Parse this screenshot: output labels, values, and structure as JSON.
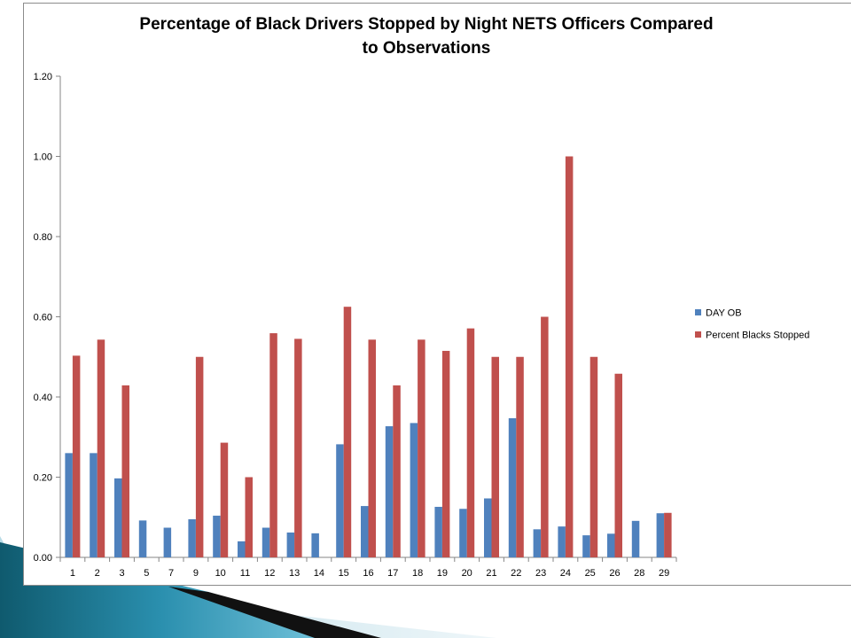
{
  "chart_data": {
    "type": "bar",
    "title": "Percentage of Black Drivers Stopped by Night NETS Officers Compared to Observations",
    "xlabel": "",
    "ylabel": "",
    "ylim": [
      0,
      1.2
    ],
    "yticks": [
      "0.00",
      "0.20",
      "0.40",
      "0.60",
      "0.80",
      "1.00",
      "1.20"
    ],
    "grid": false,
    "legend_position": "right",
    "categories": [
      "1",
      "2",
      "3",
      "5",
      "7",
      "9",
      "10",
      "11",
      "12",
      "13",
      "14",
      "15",
      "16",
      "17",
      "18",
      "19",
      "20",
      "21",
      "22",
      "23",
      "24",
      "25",
      "26",
      "28",
      "29"
    ],
    "series": [
      {
        "name": "DAY OB",
        "color": "#4F81BD",
        "values": [
          0.26,
          0.26,
          0.197,
          0.092,
          0.074,
          0.095,
          0.104,
          0.04,
          0.074,
          0.062,
          0.06,
          0.282,
          0.128,
          0.327,
          0.335,
          0.126,
          0.121,
          0.147,
          0.347,
          0.07,
          0.077,
          0.055,
          0.059,
          0.091,
          0.11
        ]
      },
      {
        "name": "Percent Blacks Stopped",
        "color": "#C0504D",
        "values": [
          0.503,
          0.543,
          0.429,
          0,
          0,
          0.5,
          0.286,
          0.2,
          0.559,
          0.545,
          0,
          0.625,
          0.543,
          0.429,
          0.543,
          0.515,
          0.571,
          0.5,
          0.5,
          0.6,
          1.0,
          0.5,
          0.458,
          0,
          0.111
        ]
      }
    ]
  }
}
